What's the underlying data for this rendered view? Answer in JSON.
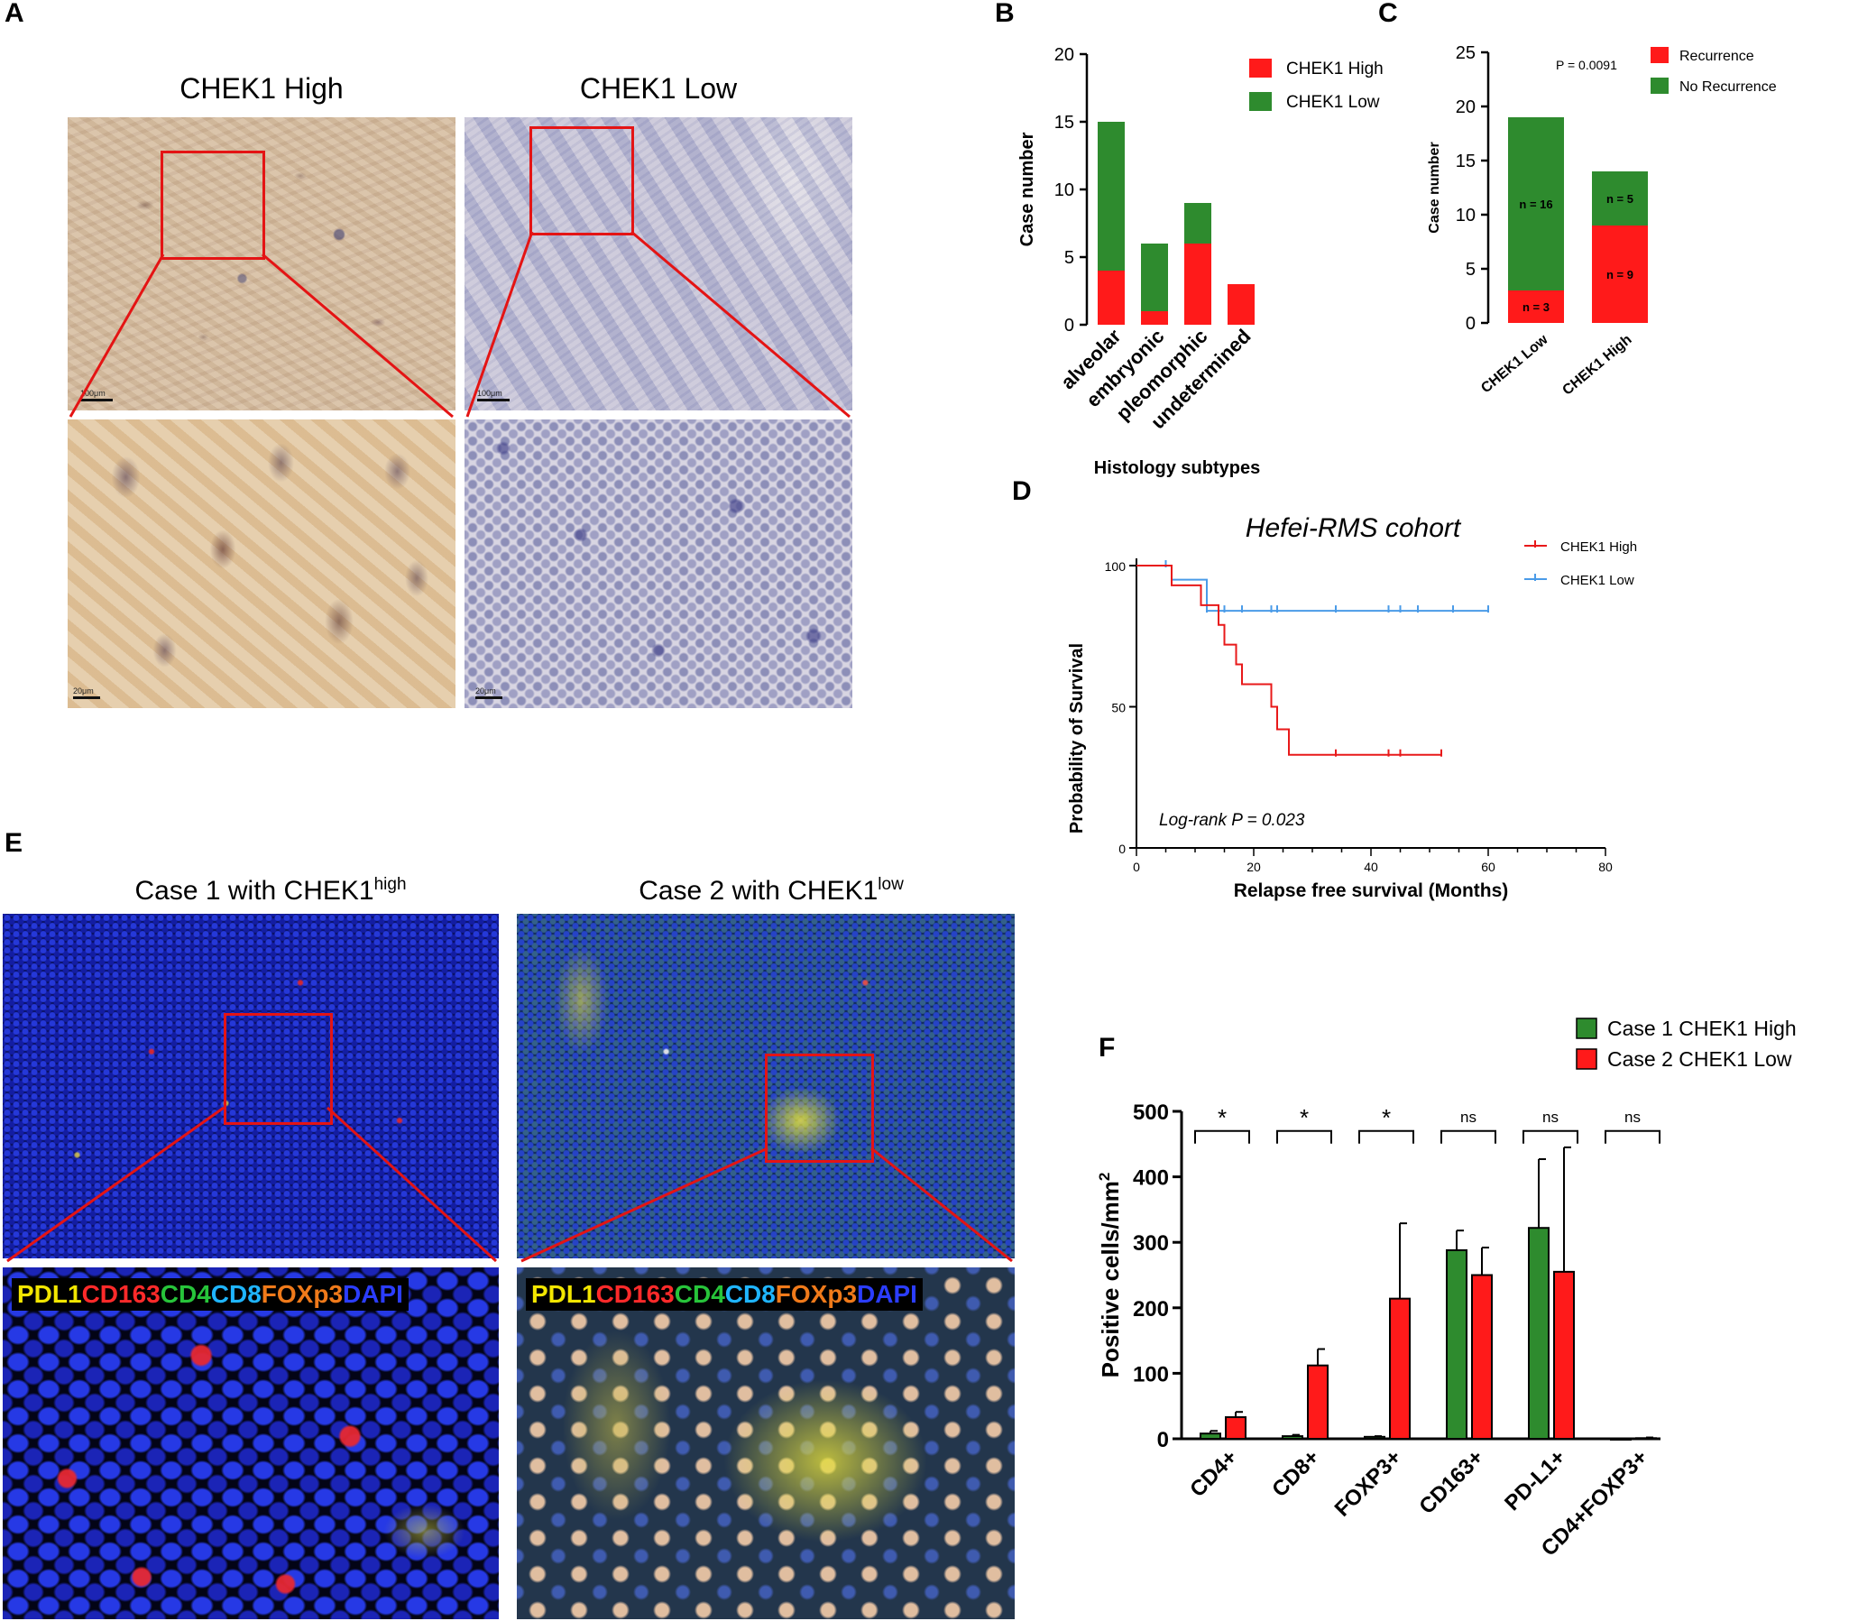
{
  "panel_letters": {
    "a": "A",
    "b": "B",
    "c": "C",
    "d": "D",
    "e": "E",
    "f": "F"
  },
  "panel_a": {
    "titles": [
      "CHEK1 High",
      "CHEK1 Low"
    ],
    "scale_top": "100μm",
    "scale_bottom": "20μm"
  },
  "panel_e": {
    "case1_prefix": "Case 1 with CHEK1",
    "case1_sup": "high",
    "case2_prefix": "Case 2 with CHEK1",
    "case2_sup": "low",
    "stain_parts": [
      {
        "text": "PDL1",
        "color": "#f2e600"
      },
      {
        "text": "CD163",
        "color": "#ff2a2a"
      },
      {
        "text": "CD4",
        "color": "#27c43a"
      },
      {
        "text": "CD8",
        "color": "#1fb5ff"
      },
      {
        "text": "FOXp3",
        "color": "#f07a1a"
      },
      {
        "text": "DAPI",
        "color": "#2b3dff"
      }
    ]
  },
  "colors": {
    "red": "#ff1a1a",
    "green": "#2e8b2e",
    "blue_km": "#4a9be8",
    "red_km": "#e8191a"
  },
  "chart_data": [
    {
      "id": "B",
      "type": "bar",
      "stacked": true,
      "categories": [
        "alveolar",
        "embryonic",
        "pleomorphic",
        "undetermined"
      ],
      "series": [
        {
          "name": "CHEK1 High",
          "color": "#ff1a1a",
          "values": [
            4,
            1,
            6,
            3
          ]
        },
        {
          "name": "CHEK1 Low",
          "color": "#2e8b2e",
          "values": [
            11,
            5,
            3,
            0
          ]
        }
      ],
      "xlabel": "Histology subtypes",
      "ylabel": "Case number",
      "ylim": [
        0,
        20
      ],
      "yticks": [
        0,
        5,
        10,
        15,
        20
      ],
      "legend": "top-right"
    },
    {
      "id": "C",
      "type": "bar",
      "stacked": true,
      "categories": [
        "CHEK1 Low",
        "CHEK1 High"
      ],
      "series": [
        {
          "name": "Recurrence",
          "color": "#ff1a1a",
          "values": [
            3,
            9
          ],
          "labels": [
            "n = 3",
            "n = 9"
          ]
        },
        {
          "name": "No Recurrence",
          "color": "#2e8b2e",
          "values": [
            16,
            5
          ],
          "labels": [
            "n = 16",
            "n = 5"
          ]
        }
      ],
      "ylabel": "Case number",
      "ylim": [
        0,
        25
      ],
      "yticks": [
        0,
        5,
        10,
        15,
        20,
        25
      ],
      "annotation": "P = 0.0091",
      "legend": "top-right"
    },
    {
      "id": "D",
      "type": "line",
      "title": "Hefei-RMS cohort",
      "xlabel": "Relapse free survival (Months)",
      "ylabel": "Probability of Survival",
      "xlim": [
        0,
        80
      ],
      "ylim": [
        0,
        100
      ],
      "xticks": [
        0,
        20,
        40,
        60,
        80
      ],
      "yticks": [
        0,
        50,
        100
      ],
      "annotation": "Log-rank P = 0.023",
      "legend": "top-right",
      "series": [
        {
          "name": "CHEK1 High",
          "color": "#e8191a",
          "steps": [
            [
              0,
              100
            ],
            [
              6,
              100
            ],
            [
              6,
              93
            ],
            [
              11,
              93
            ],
            [
              11,
              86
            ],
            [
              14,
              86
            ],
            [
              14,
              79
            ],
            [
              15,
              79
            ],
            [
              15,
              72
            ],
            [
              17,
              72
            ],
            [
              17,
              65
            ],
            [
              18,
              65
            ],
            [
              18,
              58
            ],
            [
              23,
              58
            ],
            [
              23,
              50
            ],
            [
              24,
              50
            ],
            [
              24,
              42
            ],
            [
              26,
              42
            ],
            [
              26,
              33
            ],
            [
              52,
              33
            ]
          ],
          "censored": [
            [
              34,
              33
            ],
            [
              43,
              33
            ],
            [
              45,
              33
            ],
            [
              52,
              33
            ]
          ]
        },
        {
          "name": "CHEK1 Low",
          "color": "#4a9be8",
          "steps": [
            [
              0,
              100
            ],
            [
              6,
              100
            ],
            [
              6,
              95
            ],
            [
              12,
              95
            ],
            [
              12,
              84
            ],
            [
              60,
              84
            ]
          ],
          "censored": [
            [
              5,
              100
            ],
            [
              12,
              84
            ],
            [
              15,
              84
            ],
            [
              18,
              84
            ],
            [
              23,
              84
            ],
            [
              24,
              84
            ],
            [
              34,
              84
            ],
            [
              43,
              84
            ],
            [
              45,
              84
            ],
            [
              48,
              84
            ],
            [
              54,
              84
            ],
            [
              60,
              84
            ]
          ]
        }
      ]
    },
    {
      "id": "F",
      "type": "bar",
      "categories": [
        "CD4+",
        "CD8+",
        "FOXP3+",
        "CD163+",
        "PD-L1+",
        "CD4+FOXP3+"
      ],
      "series": [
        {
          "name": "Case 1 CHEK1 High",
          "color": "#2e8b2e",
          "values": [
            8,
            4,
            3,
            288,
            322,
            0
          ],
          "errors": [
            4,
            2,
            1,
            30,
            105,
            0
          ]
        },
        {
          "name": "Case 2 CHEK1 Low",
          "color": "#ff1a1a",
          "values": [
            33,
            112,
            214,
            250,
            255,
            1
          ],
          "errors": [
            8,
            25,
            115,
            42,
            190,
            1
          ]
        }
      ],
      "significance": [
        "*",
        "*",
        "*",
        "ns",
        "ns",
        "ns"
      ],
      "ylabel": "Positive cells/mm",
      "ylabel_sup": "2",
      "ylim": [
        0,
        500
      ],
      "yticks": [
        0,
        100,
        200,
        300,
        400,
        500
      ],
      "legend": "top-right"
    }
  ]
}
